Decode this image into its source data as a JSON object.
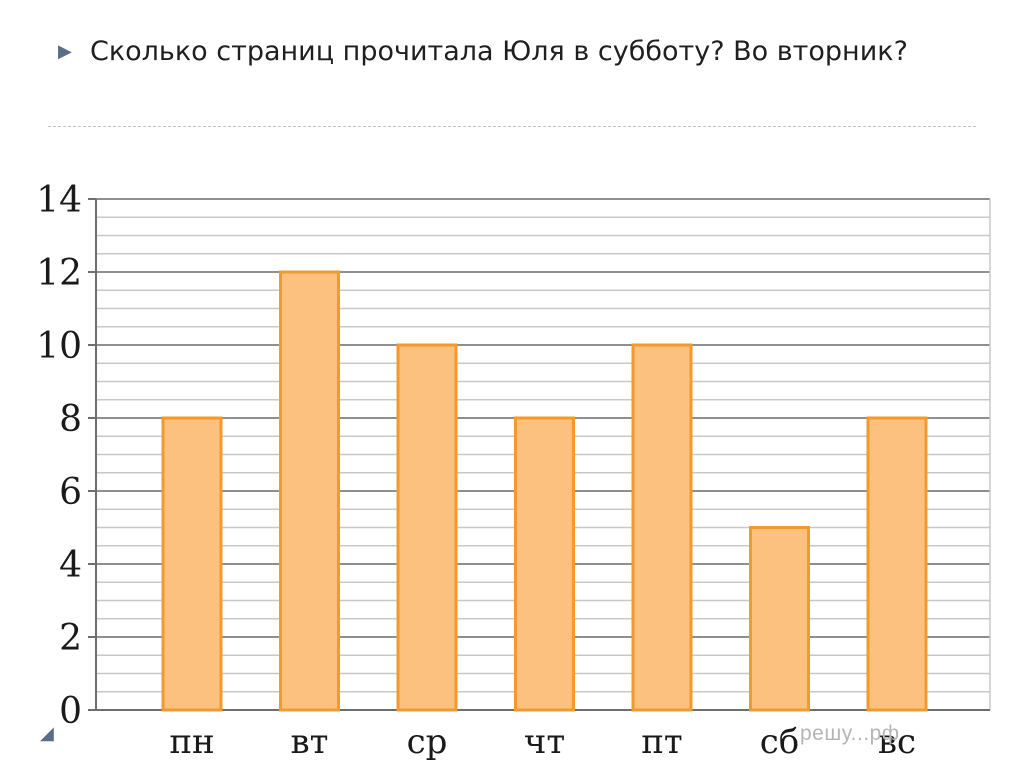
{
  "slide": {
    "question": "Сколько страниц прочитала Юля в субботу? Во вторник?",
    "bullet_icon": "triangle-bullet-icon",
    "watermark": "решу...рф"
  },
  "chart_data": {
    "type": "bar",
    "categories": [
      "пн",
      "вт",
      "ср",
      "чт",
      "пт",
      "сб",
      "вс"
    ],
    "values": [
      8,
      12,
      10,
      8,
      10,
      5,
      8
    ],
    "title": "",
    "xlabel": "",
    "ylabel": "",
    "ylim": [
      0,
      14
    ],
    "yticks": [
      0,
      2,
      4,
      6,
      8,
      10,
      12,
      14
    ],
    "minor_step": 0.5,
    "grid": true,
    "legend": "none",
    "colors": {
      "bar_fill": "#fcc07f",
      "bar_stroke": "#f39a2f",
      "grid_minor": "#c8c8c8",
      "grid_major": "#8f8f8f",
      "axis": "#6e6e6e",
      "text": "#1a1a1a"
    }
  }
}
